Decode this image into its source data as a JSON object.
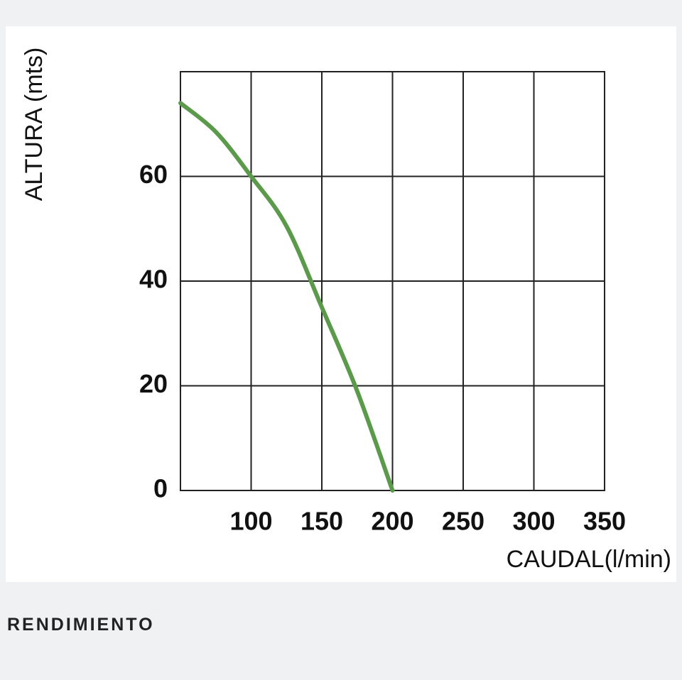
{
  "chart_data": {
    "type": "line",
    "x_label": "CAUDAL(l/min)",
    "y_label": "ALTURA (mts)",
    "x": [
      50,
      75,
      100,
      125,
      150,
      175,
      200
    ],
    "series": [
      {
        "color": "#5b9a4b",
        "values": [
          74,
          68.5,
          60,
          50.5,
          35,
          19,
          0
        ]
      }
    ],
    "xlim": [
      50,
      350
    ],
    "xticks": [
      100,
      150,
      200,
      250,
      300,
      350
    ],
    "ylim": [
      0,
      80
    ],
    "yticks": [
      0,
      20,
      40,
      60
    ],
    "grid": true
  },
  "caption": "RENDIMIENTO"
}
